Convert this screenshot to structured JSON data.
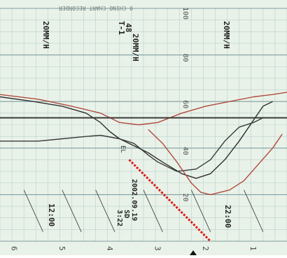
{
  "header_text": "0 CHINO CHART RECORDER",
  "speed_labels": [
    "20MM/H",
    "20MM/H",
    "20MM/H"
  ],
  "t_marker": "T-1",
  "t_value": "48",
  "time_labels": [
    "12:00",
    "3:22",
    "22:00"
  ],
  "time_annotation_label": "SD",
  "date_label": "2002.09.19",
  "minor_label": "EL",
  "colors": {
    "paper": "#e9f2e8",
    "grid_major": "#7f9ea1",
    "grid_minor": "#b7cfcf",
    "trace_dark": "#2f2f2f",
    "trace_red": "#b04a3e",
    "marker_red": "#e01818"
  },
  "chart_data": {
    "type": "line",
    "title": "",
    "xlabel": "",
    "ylabel": "",
    "x_ticks": [
      "6",
      "5",
      "4",
      "3",
      "2",
      "1"
    ],
    "y_ticks": [
      100,
      80,
      60,
      40,
      20
    ],
    "xlim": [
      6.3,
      0.3
    ],
    "ylim": [
      0,
      100
    ],
    "grid": true,
    "series": [
      {
        "key": "dark-upper",
        "color": "#2f2f2f",
        "points": [
          [
            6.3,
            62
          ],
          [
            5.6,
            60
          ],
          [
            5,
            58
          ],
          [
            4.5,
            55
          ],
          [
            4.2,
            51
          ],
          [
            4,
            47
          ],
          [
            3.8,
            44
          ],
          [
            3.5,
            41
          ],
          [
            3.2,
            38
          ],
          [
            2.9,
            34
          ],
          [
            2.5,
            29
          ],
          [
            2.2,
            27
          ],
          [
            1.9,
            29
          ],
          [
            1.6,
            35
          ],
          [
            1.3,
            43
          ],
          [
            1.0,
            52
          ],
          [
            0.8,
            58
          ],
          [
            0.6,
            60
          ]
        ]
      },
      {
        "key": "red-main",
        "color": "#b04a3e",
        "points": [
          [
            6.3,
            63
          ],
          [
            5.5,
            61
          ],
          [
            4.8,
            58
          ],
          [
            4.2,
            55
          ],
          [
            3.8,
            51
          ],
          [
            3.4,
            50
          ],
          [
            3.0,
            51
          ],
          [
            2.5,
            55
          ],
          [
            2.0,
            58
          ],
          [
            1.5,
            60
          ],
          [
            1.0,
            62
          ],
          [
            0.6,
            63
          ],
          [
            0.3,
            64
          ]
        ]
      },
      {
        "key": "horizontal-flat",
        "color": "#3a3a3a",
        "points": [
          [
            6.3,
            53
          ],
          [
            5,
            53
          ],
          [
            4,
            53
          ],
          [
            3,
            53
          ],
          [
            2,
            53
          ],
          [
            1,
            53
          ],
          [
            0.3,
            53
          ]
        ]
      },
      {
        "key": "lower-trace",
        "color": "#3a3a3a",
        "points": [
          [
            6.3,
            43
          ],
          [
            5.5,
            43
          ],
          [
            5,
            44
          ],
          [
            4.5,
            45
          ],
          [
            4.2,
            45.5
          ],
          [
            3.8,
            44
          ],
          [
            3.5,
            42
          ],
          [
            3.2,
            37
          ],
          [
            3.0,
            34
          ],
          [
            2.6,
            30
          ],
          [
            2.2,
            31
          ],
          [
            1.9,
            35
          ],
          [
            1.6,
            43
          ],
          [
            1.3,
            49
          ],
          [
            1.0,
            51
          ],
          [
            0.8,
            53
          ]
        ]
      },
      {
        "key": "red-lower",
        "color": "#b04a3e",
        "points": [
          [
            3.2,
            48
          ],
          [
            2.9,
            42
          ],
          [
            2.6,
            34
          ],
          [
            2.3,
            25
          ],
          [
            2.1,
            21
          ],
          [
            1.9,
            20
          ],
          [
            1.5,
            22
          ],
          [
            1.2,
            26
          ],
          [
            0.9,
            33
          ],
          [
            0.6,
            40
          ],
          [
            0.4,
            46
          ]
        ]
      }
    ]
  }
}
